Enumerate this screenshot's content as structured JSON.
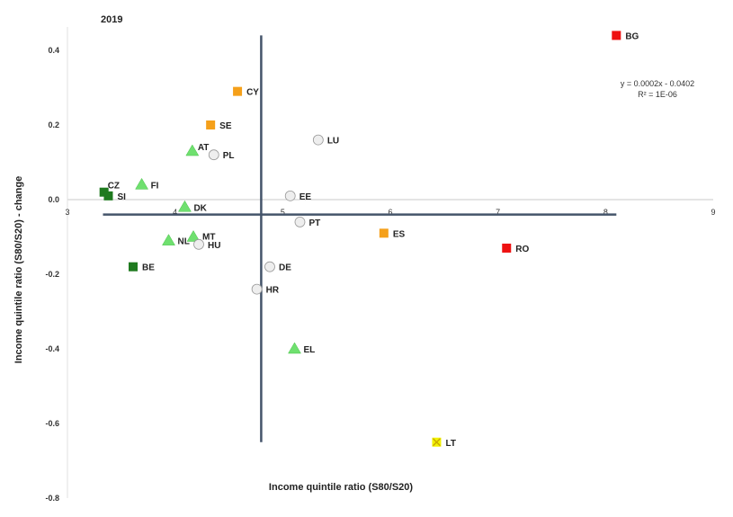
{
  "chart_data": {
    "type": "scatter",
    "title": "2019",
    "xlabel": "Income quintile ratio (S80/S20)",
    "ylabel": "Income quintile ratio (S80/S20) - change",
    "xlim": [
      3,
      9
    ],
    "ylim": [
      -0.8,
      0.45
    ],
    "xticks": [
      "3",
      "4",
      "5",
      "6",
      "7",
      "8",
      "9"
    ],
    "yticks": [
      "0.4",
      "0.2",
      "0.0",
      "-0.2",
      "-0.4",
      "-0.6",
      "-0.8"
    ],
    "grid": false,
    "legend": "none",
    "trendline": {
      "equation": "y = 0.0002x - 0.0402",
      "r2": "R² = 1E-06"
    },
    "reference_lines": {
      "vertical_x": 4.8,
      "horizontal_y": -0.04,
      "horizontal_x_range": [
        3.33,
        8.1
      ],
      "vertical_y_range": [
        -0.65,
        0.44
      ]
    },
    "colors": {
      "dark_green": "#1f7a1f",
      "light_green": "#6fe06f",
      "grey": "#eeeeee",
      "orange": "#f5a01a",
      "red": "#ee1111",
      "yellow": "#f2f200"
    },
    "points": [
      {
        "label": "BG",
        "x": 8.1,
        "y": 0.44,
        "marker": "square",
        "color": "red"
      },
      {
        "label": "CY",
        "x": 4.58,
        "y": 0.29,
        "marker": "square",
        "color": "orange"
      },
      {
        "label": "SE",
        "x": 4.33,
        "y": 0.2,
        "marker": "square",
        "color": "orange"
      },
      {
        "label": "AT",
        "x": 4.16,
        "y": 0.13,
        "marker": "triangle",
        "color": "light_green"
      },
      {
        "label": "PL",
        "x": 4.36,
        "y": 0.12,
        "marker": "circle",
        "color": "grey"
      },
      {
        "label": "LU",
        "x": 5.33,
        "y": 0.16,
        "marker": "circle",
        "color": "grey"
      },
      {
        "label": "FI",
        "x": 3.69,
        "y": 0.04,
        "marker": "triangle",
        "color": "light_green"
      },
      {
        "label": "CZ",
        "x": 3.34,
        "y": 0.02,
        "marker": "square",
        "color": "dark_green"
      },
      {
        "label": "SI",
        "x": 3.38,
        "y": 0.01,
        "marker": "square",
        "color": "dark_green"
      },
      {
        "label": "DK",
        "x": 4.09,
        "y": -0.02,
        "marker": "triangle",
        "color": "light_green"
      },
      {
        "label": "EE",
        "x": 5.07,
        "y": 0.01,
        "marker": "circle",
        "color": "grey"
      },
      {
        "label": "PT",
        "x": 5.16,
        "y": -0.06,
        "marker": "circle",
        "color": "grey"
      },
      {
        "label": "ES",
        "x": 5.94,
        "y": -0.09,
        "marker": "square",
        "color": "orange"
      },
      {
        "label": "RO",
        "x": 7.08,
        "y": -0.13,
        "marker": "square",
        "color": "red"
      },
      {
        "label": "NL",
        "x": 3.94,
        "y": -0.11,
        "marker": "triangle",
        "color": "light_green"
      },
      {
        "label": "MT",
        "x": 4.17,
        "y": -0.1,
        "marker": "triangle",
        "color": "light_green"
      },
      {
        "label": "HU",
        "x": 4.22,
        "y": -0.12,
        "marker": "circle",
        "color": "grey"
      },
      {
        "label": "BE",
        "x": 3.61,
        "y": -0.18,
        "marker": "square",
        "color": "dark_green"
      },
      {
        "label": "DE",
        "x": 4.88,
        "y": -0.18,
        "marker": "circle",
        "color": "grey"
      },
      {
        "label": "HR",
        "x": 4.76,
        "y": -0.24,
        "marker": "circle",
        "color": "grey"
      },
      {
        "label": "EL",
        "x": 5.11,
        "y": -0.4,
        "marker": "triangle",
        "color": "light_green"
      },
      {
        "label": "LT",
        "x": 6.43,
        "y": -0.65,
        "marker": "x",
        "color": "yellow"
      }
    ]
  }
}
